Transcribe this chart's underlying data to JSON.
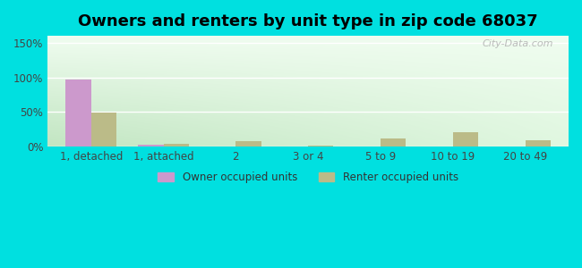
{
  "title": "Owners and renters by unit type in zip code 68037",
  "categories": [
    "1, detached",
    "1, attached",
    "2",
    "3 or 4",
    "5 to 9",
    "10 to 19",
    "20 to 49"
  ],
  "owner_values": [
    97,
    3,
    0,
    0,
    0,
    0,
    0
  ],
  "renter_values": [
    49,
    4,
    8,
    1,
    11,
    20,
    9
  ],
  "owner_color": "#cc99cc",
  "renter_color": "#bbbb88",
  "background_outer": "#00e0e0",
  "yticks": [
    0,
    50,
    100,
    150
  ],
  "ylim": [
    0,
    160
  ],
  "bar_width": 0.35,
  "title_fontsize": 13,
  "legend_label_owner": "Owner occupied units",
  "legend_label_renter": "Renter occupied units",
  "watermark": "City-Data.com",
  "grad_top_left": "#c5e8c5",
  "grad_top_right": "#e8f8e8",
  "grad_bottom_left": "#b8ddb8",
  "grad_bottom_right": "#f0fcf0"
}
